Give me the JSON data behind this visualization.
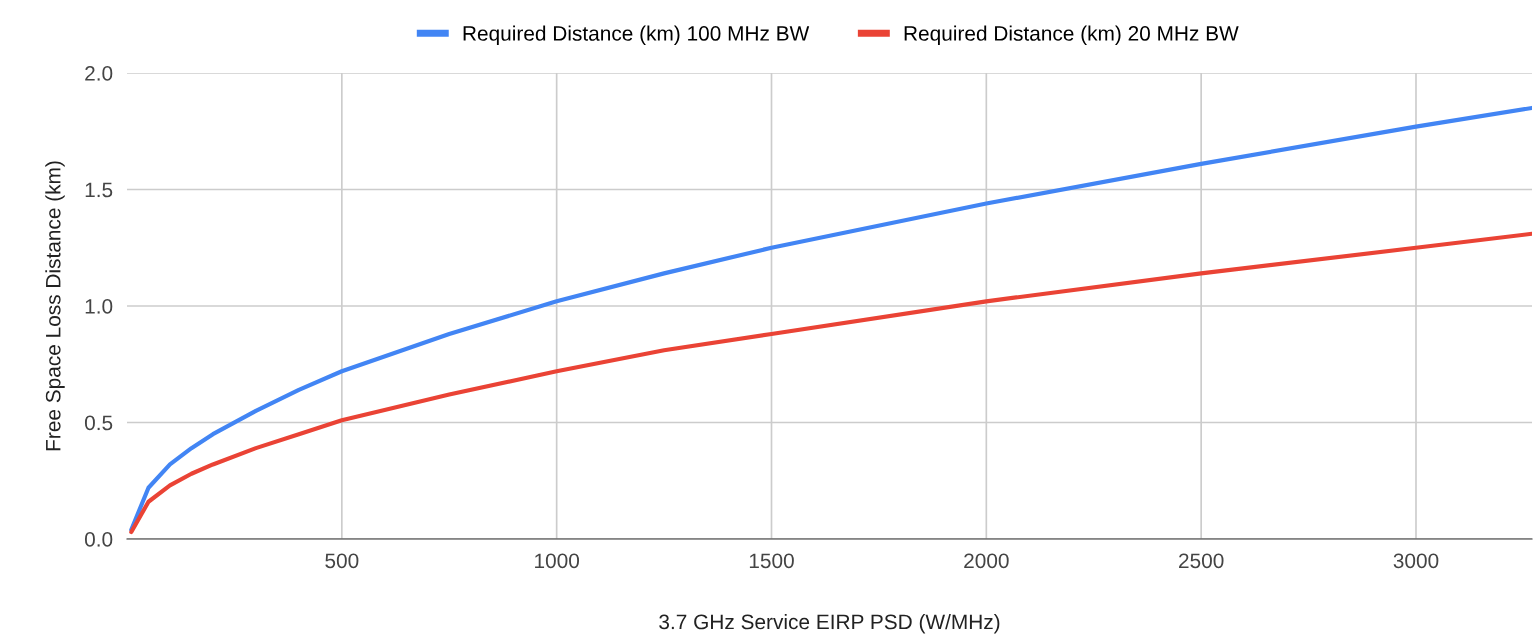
{
  "chart_data": {
    "type": "line",
    "xlabel": "3.7 GHz Service EIRP PSD (W/MHz)",
    "ylabel": "Free Space Loss Distance (km)",
    "x": [
      10,
      50,
      100,
      150,
      200,
      300,
      400,
      500,
      750,
      1000,
      1250,
      1500,
      2000,
      2500,
      3000,
      3270
    ],
    "series": [
      {
        "name": "Required Distance (km) 100 MHz BW",
        "color": "#4285f4",
        "values": [
          0.04,
          0.22,
          0.32,
          0.39,
          0.45,
          0.55,
          0.64,
          0.72,
          0.88,
          1.02,
          1.14,
          1.25,
          1.44,
          1.61,
          1.77,
          1.85
        ]
      },
      {
        "name": "Required Distance (km) 20 MHz BW",
        "color": "#ea4335",
        "values": [
          0.03,
          0.16,
          0.23,
          0.28,
          0.32,
          0.39,
          0.45,
          0.51,
          0.62,
          0.72,
          0.81,
          0.88,
          1.02,
          1.14,
          1.25,
          1.31
        ]
      }
    ],
    "xlim": [
      0,
      3270
    ],
    "xticks": [
      500,
      1000,
      1500,
      2000,
      2500,
      3000
    ],
    "ylim": [
      0,
      2.0
    ],
    "yticks": [
      {
        "value": 0,
        "label": "0.0"
      },
      {
        "value": 0.5,
        "label": "0.5"
      },
      {
        "value": 1.0,
        "label": "1.0"
      },
      {
        "value": 1.5,
        "label": "1.5"
      },
      {
        "value": 2.0,
        "label": "2.0"
      }
    ],
    "grid": true,
    "legend": "top",
    "marker": "none",
    "line_style": "solid"
  }
}
